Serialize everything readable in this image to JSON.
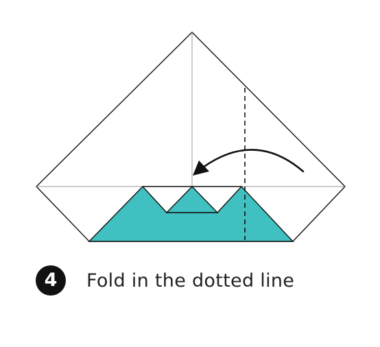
{
  "step": {
    "number": "4",
    "instruction": "Fold in the dotted line"
  },
  "colors": {
    "paper_fill": "#40c0c0",
    "outline": "#111111",
    "crease": "#9a9a9a",
    "background": "#ffffff"
  },
  "icons": {
    "fold_arrow": "curved-arrow-left-icon",
    "fold_line": "dashed-vertical-line"
  }
}
